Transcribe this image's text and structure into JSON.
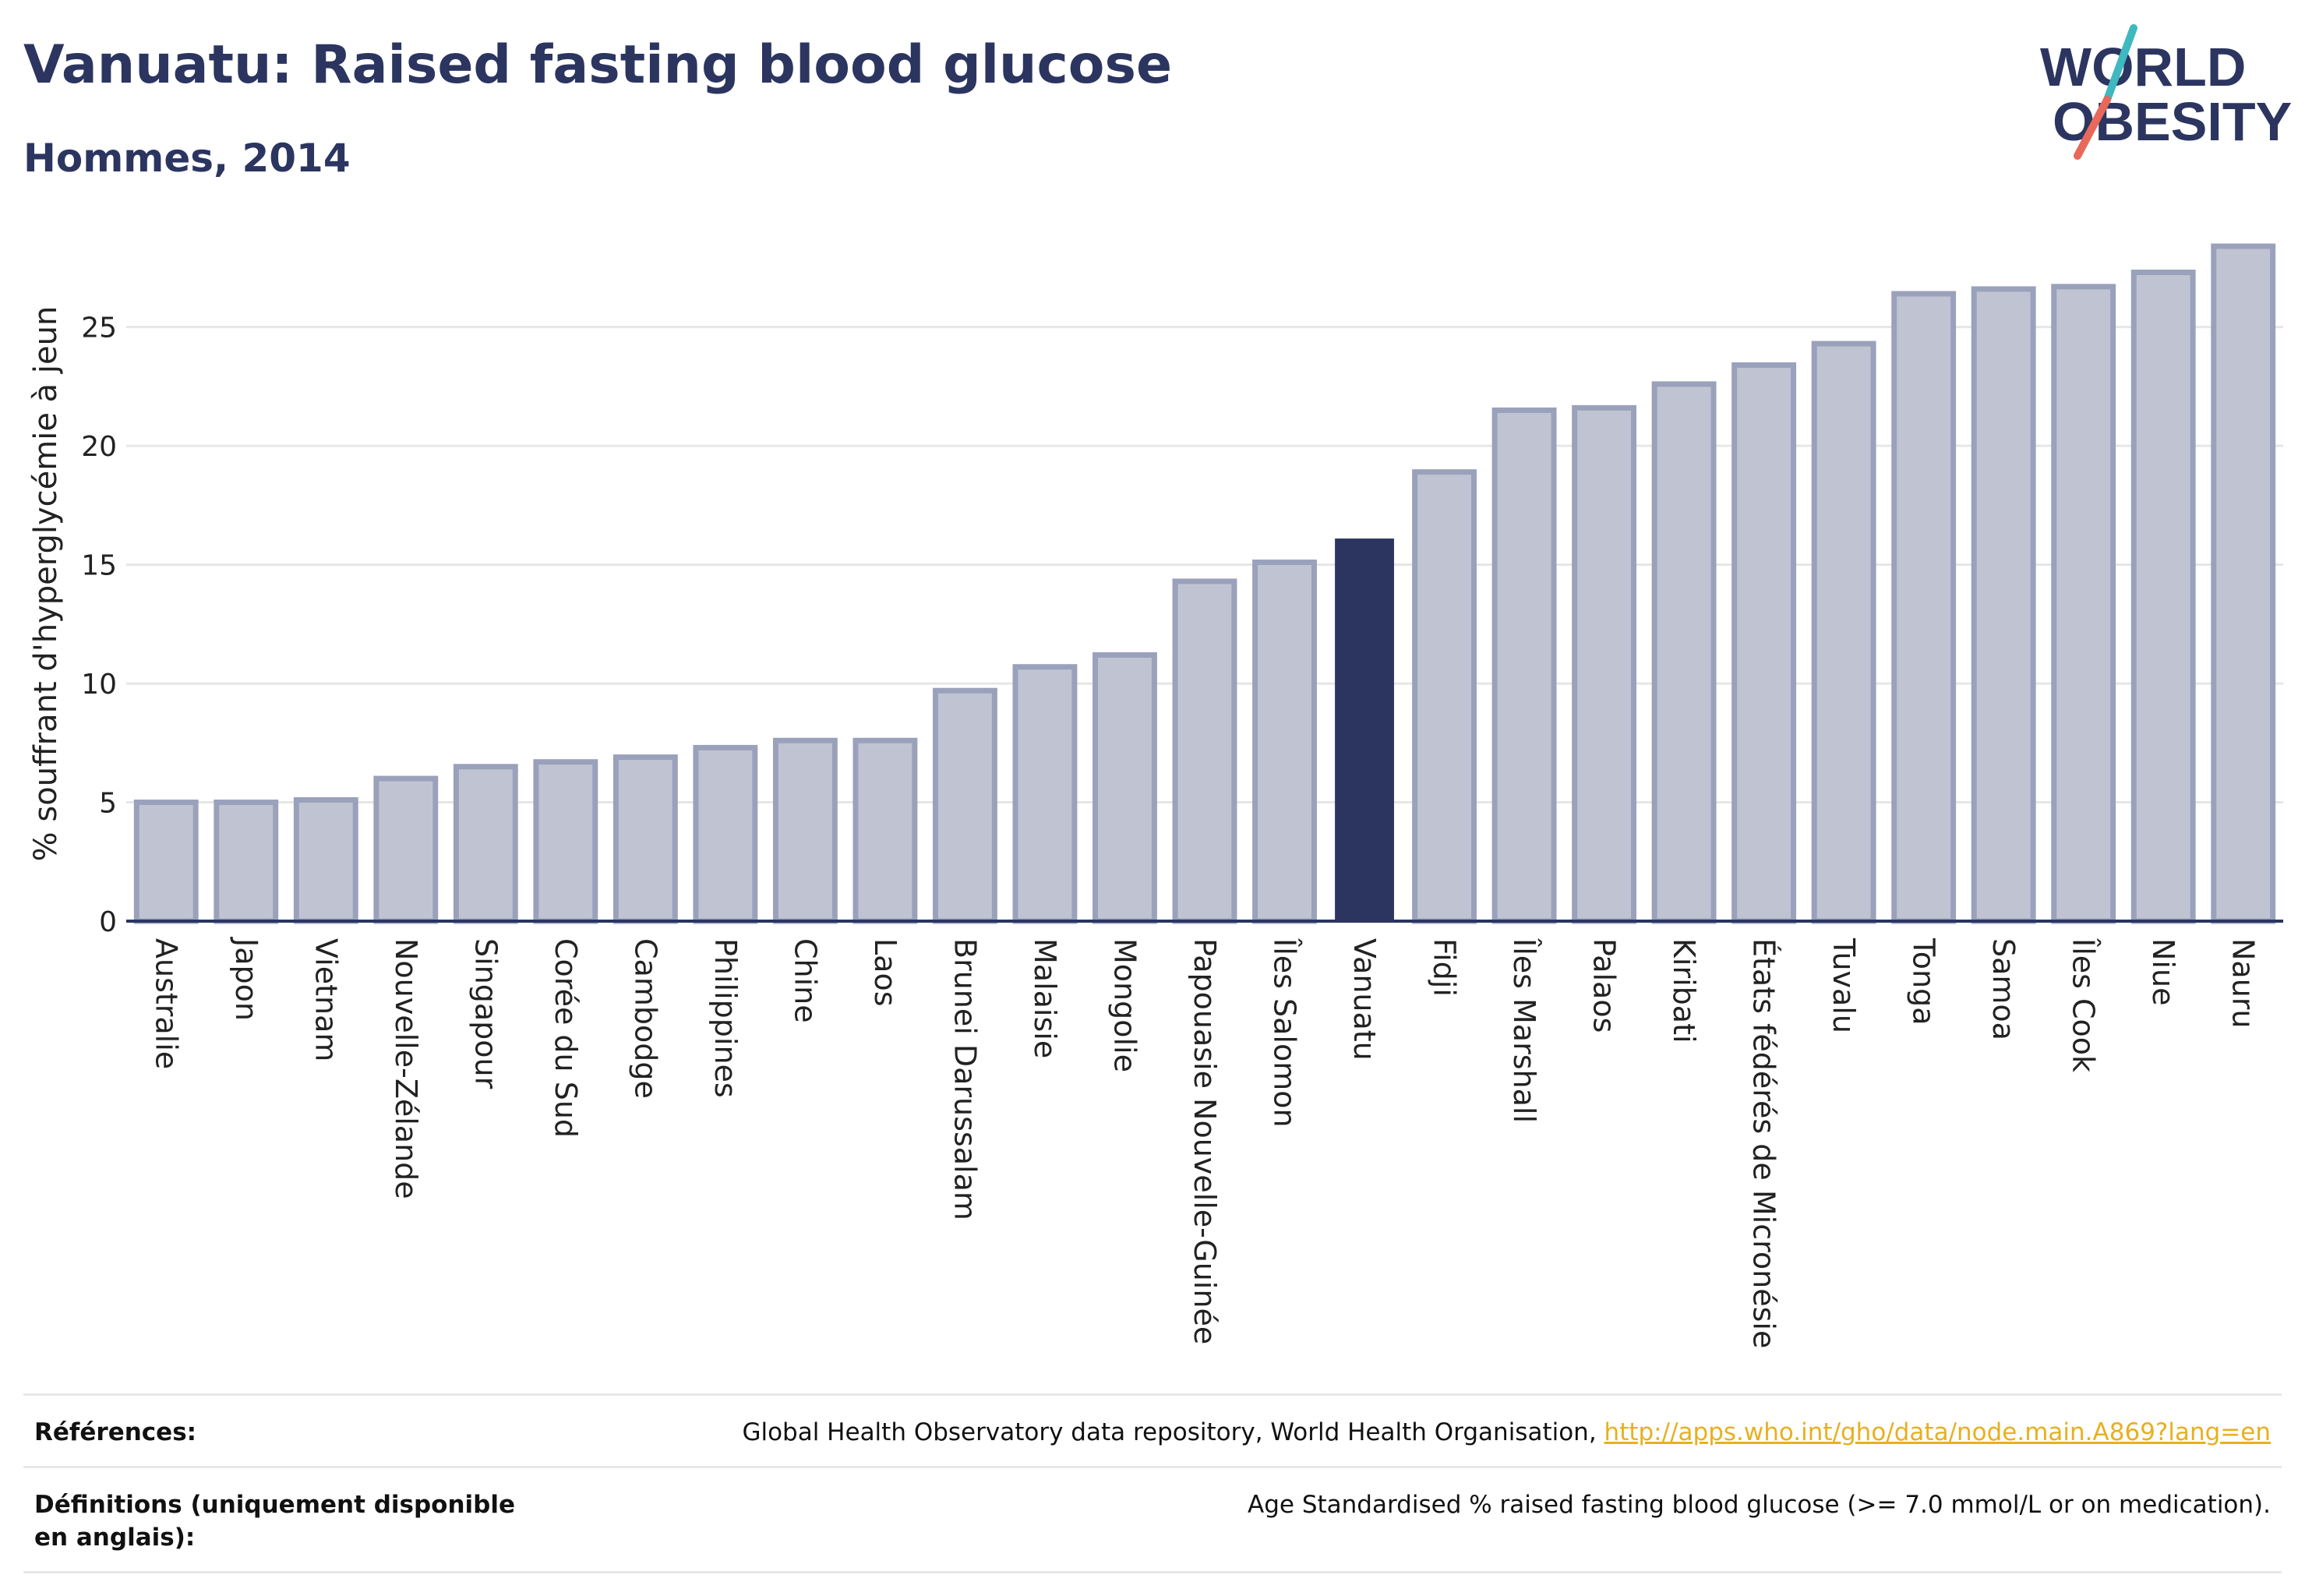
{
  "header": {
    "title": "Vanuatu: Raised fasting blood glucose",
    "subtitle": "Hommes, 2014"
  },
  "logo": {
    "line1": "WORLD",
    "line2": "OBESITY",
    "colors": {
      "text": "#2b3560",
      "slash_top": "#3fb8c0",
      "slash_bottom": "#e8685a"
    }
  },
  "chart_data": {
    "type": "bar",
    "ylabel": "% souffrant d'hyperglycémie à jeun",
    "ylim": [
      0,
      28.4
    ],
    "yticks": [
      0,
      5,
      10,
      15,
      20,
      25
    ],
    "grid": true,
    "highlight": "Vanuatu",
    "colors": {
      "bar": "#c0c4d2",
      "bar_border": "#9aa1bb",
      "highlight": "#2b3560",
      "grid": "#e6e6e6",
      "axis": "#2b3560"
    },
    "categories": [
      "Australie",
      "Japon",
      "Vietnam",
      "Nouvelle-Zélande",
      "Singapour",
      "Corée du Sud",
      "Cambodge",
      "Philippines",
      "Chine",
      "Laos",
      "Brunei Darussalam",
      "Malaisie",
      "Mongolie",
      "Papouasie Nouvelle-Guinée",
      "Îles Salomon",
      "Vanuatu",
      "Fidji",
      "Îles Marshall",
      "Palaos",
      "Kiribati",
      "États fédérés de Micronésie",
      "Tuvalu",
      "Tonga",
      "Samoa",
      "Îles Cook",
      "Niue",
      "Nauru"
    ],
    "values": [
      5.0,
      5.0,
      5.1,
      6.0,
      6.5,
      6.7,
      6.9,
      7.3,
      7.6,
      7.6,
      9.7,
      10.7,
      11.2,
      14.3,
      15.1,
      16.1,
      18.9,
      21.5,
      21.6,
      22.6,
      23.4,
      24.3,
      26.4,
      26.6,
      26.7,
      27.3,
      28.4
    ]
  },
  "references": {
    "sources_label": "Références:",
    "sources_text": "Global Health Observatory data repository, World Health Organisation,",
    "sources_link": "http://apps.who.int/gho/data/node.main.A869?lang=en",
    "definitions_label": "Définitions (uniquement disponible en anglais):",
    "definitions_text": "Age Standardised % raised fasting blood glucose (>= 7.0 mmol/L or on medication)."
  }
}
